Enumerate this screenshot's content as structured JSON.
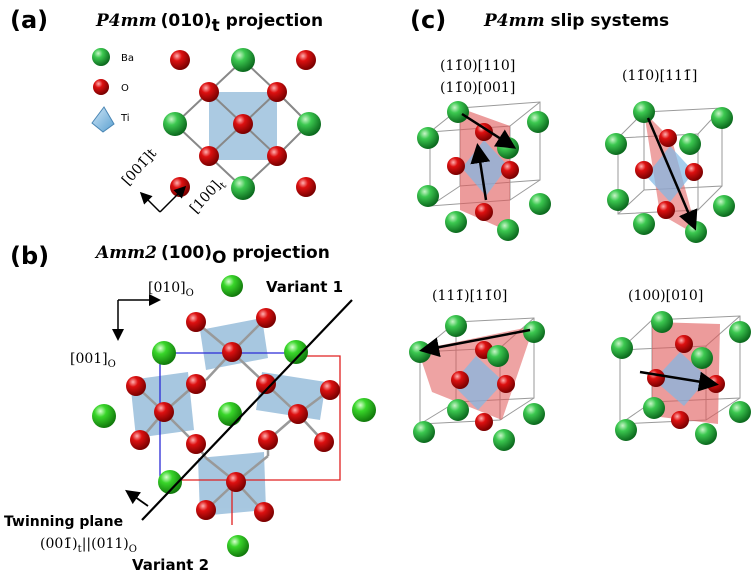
{
  "panel_a": {
    "label": "(a)",
    "title_italic": "P4mm",
    "title_plane": "(010)",
    "title_sub": "t",
    "title_rest": " projection",
    "legend": {
      "ba": "Ba",
      "o": "O",
      "ti": "Ti"
    },
    "axis_left": "[001̄]",
    "axis_left_sub": "t",
    "axis_bottom": "[100]",
    "axis_bottom_sub": "t"
  },
  "panel_b": {
    "label": "(b)",
    "title_italic": "Amm2",
    "title_plane": "(100)",
    "title_sub": "O",
    "title_rest": " projection",
    "axis_h": "[010]",
    "axis_h_sub": "O",
    "axis_v": "[001]",
    "axis_v_sub": "O",
    "variant1": "Variant 1",
    "variant2": "Variant 2",
    "twin_plane": "Twinning plane",
    "twin_rel": "(001̄)",
    "twin_rel_sub1": "t",
    "twin_rel_mid": "||(011)",
    "twin_rel_sub2": "O"
  },
  "panel_c": {
    "label": "(c)",
    "title_italic": "P4mm",
    "title_rest": " slip systems",
    "slip1a": "(11̄0)[110]",
    "slip1b": "(11̄0)[001]",
    "slip2": "(11̄0)[111̄]",
    "slip3": "(111̄)[11̄0]",
    "slip4": "(100)[010]"
  },
  "colors": {
    "ba": "#1f9e3c",
    "o": "#cc0000",
    "ti_octa": "#8fb8d8",
    "slip_plane": "#e06060",
    "cell_line": "#9a9a9a"
  }
}
